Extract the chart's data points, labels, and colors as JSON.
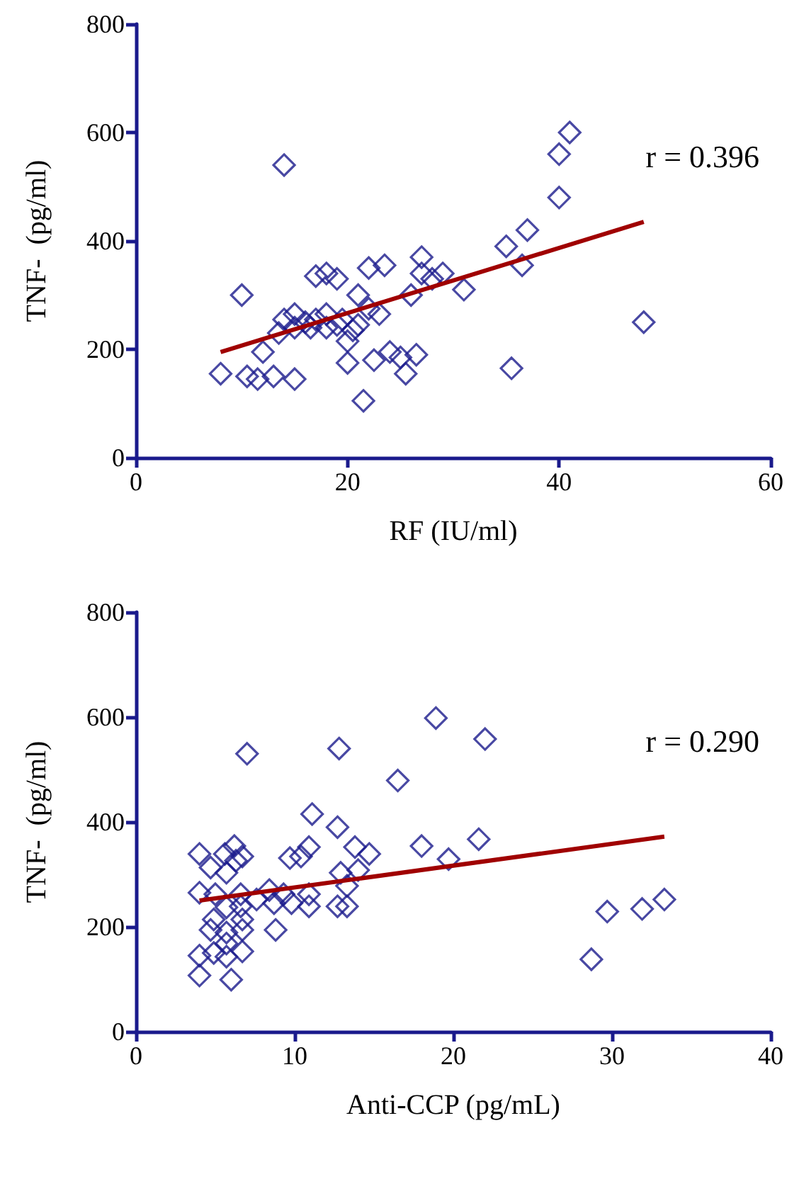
{
  "chart_data": [
    {
      "type": "scatter",
      "xlabel": "RF (IU/ml)",
      "ylabel": "TNF-  (pg/ml)",
      "grid": false,
      "xlim": [
        0,
        60
      ],
      "xticks": [
        0,
        20,
        40,
        60
      ],
      "ylim": [
        0,
        800
      ],
      "yticks": [
        0,
        200,
        400,
        600,
        800
      ],
      "annotations": [
        "r = 0.396"
      ],
      "series": [
        {
          "color": "#1a1a8c",
          "marker": "diamond",
          "x": [
            8,
            10,
            10.5,
            11.5,
            12,
            13,
            14,
            14,
            15,
            15,
            16,
            17,
            17,
            18,
            18,
            19,
            19,
            20,
            20,
            21,
            21,
            21.5,
            22,
            22,
            22.5,
            23,
            23.5,
            24,
            25,
            25.5,
            26,
            26.5,
            27,
            27,
            28,
            29,
            31,
            35,
            35.5,
            36.5,
            37,
            40,
            40,
            41,
            48,
            13.5,
            15,
            16.5,
            18,
            19.5,
            20.5
          ],
          "values": [
            155,
            300,
            150,
            145,
            195,
            150,
            540,
            255,
            145,
            240,
            250,
            335,
            255,
            340,
            265,
            330,
            245,
            215,
            175,
            300,
            245,
            105,
            350,
            275,
            180,
            265,
            355,
            195,
            185,
            155,
            300,
            190,
            370,
            340,
            330,
            340,
            310,
            390,
            165,
            355,
            420,
            560,
            480,
            600,
            250,
            230,
            265,
            240,
            240,
            255,
            235
          ]
        },
        {
          "type": "line",
          "marker": "none",
          "color": "#a00000",
          "x": [
            8,
            48
          ],
          "values": [
            195,
            435
          ]
        }
      ]
    },
    {
      "type": "scatter",
      "xlabel": "Anti-CCP (pg/mL)",
      "ylabel": "TNF-  (pg/ml)",
      "grid": false,
      "xlim": [
        0,
        40
      ],
      "xticks": [
        0,
        10,
        20,
        30,
        40
      ],
      "ylim": [
        0,
        800
      ],
      "yticks": [
        0,
        200,
        400,
        600,
        800
      ],
      "annotations": [
        "r = 0.290"
      ],
      "series": [
        {
          "color": "#1a1a8c",
          "marker": "diamond",
          "x": [
            4,
            4,
            4,
            4,
            4.7,
            5,
            4.9,
            4.7,
            4.9,
            5.7,
            5.6,
            6.2,
            6.3,
            6.7,
            5.7,
            6.6,
            6.6,
            6.7,
            6.7,
            5.7,
            5.7,
            5.7,
            6.7,
            6,
            7,
            7.6,
            8.4,
            8.7,
            8.8,
            9.3,
            9.8,
            9.7,
            10.4,
            10.9,
            10.9,
            10.9,
            11.1,
            12.7,
            12.8,
            12.7,
            13.3,
            12.9,
            13.3,
            13.8,
            14,
            14.7,
            16.5,
            18,
            18.9,
            19.7,
            21.6,
            22,
            28.7,
            29.7,
            31.9,
            33.3
          ],
          "values": [
            339,
            265,
            145,
            107,
            313,
            262,
            214,
            194,
            150,
            303,
            339,
            354,
            326,
            334,
            237,
            262,
            239,
            214,
            194,
            189,
            168,
            143,
            153,
            99,
            530,
            252,
            270,
            245,
            194,
            262,
            245,
            331,
            334,
            352,
            262,
            239,
            415,
            390,
            540,
            239,
            239,
            303,
            278,
            352,
            308,
            339,
            479,
            354,
            598,
            329,
            367,
            558,
            138,
            229,
            234,
            252
          ]
        },
        {
          "type": "line",
          "marker": "none",
          "color": "#a00000",
          "x": [
            4,
            33.3
          ],
          "values": [
            250,
            372
          ]
        }
      ]
    }
  ]
}
